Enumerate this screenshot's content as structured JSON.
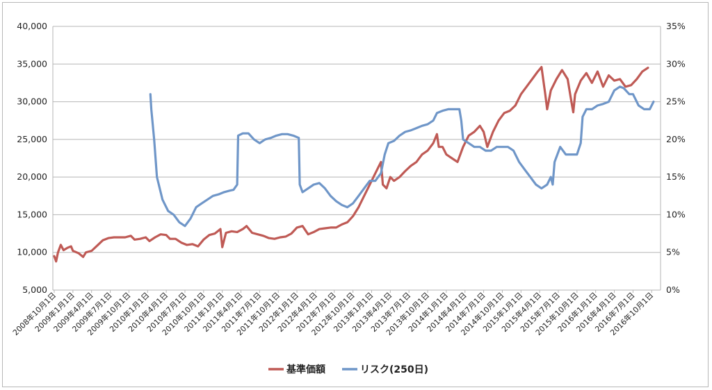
{
  "chart_data": {
    "type": "line",
    "title": "",
    "xlabel": "",
    "ylabel": "",
    "y2label": "",
    "grid": true,
    "legend_position": "bottom",
    "x_categories": [
      "2008年10月1日",
      "2009年1月1日",
      "2009年4月1日",
      "2009年7月1日",
      "2009年10月1日",
      "2010年1月1日",
      "2010年4月1日",
      "2010年7月1日",
      "2010年10月1日",
      "2011年1月1日",
      "2011年4月1日",
      "2011年7月1日",
      "2011年10月1日",
      "2012年1月1日",
      "2012年4月1日",
      "2012年7月1日",
      "2012年10月1日",
      "2013年1月1日",
      "2013年4月1日",
      "2013年7月1日",
      "2013年10月1日",
      "2014年1月1日",
      "2014年4月1日",
      "2014年7月1日",
      "2014年10月1日",
      "2015年1月1日",
      "2015年4月1日",
      "2015年7月1日",
      "2015年10月1日",
      "2016年1月1日",
      "2016年4月1日",
      "2016年7月1日",
      "2016年10月1日"
    ],
    "y_left": {
      "min": 5000,
      "max": 40000,
      "ticks": [
        "5,000",
        "10,000",
        "15,000",
        "20,000",
        "25,000",
        "30,000",
        "35,000",
        "40,000"
      ]
    },
    "y_right": {
      "min": 0,
      "max": 35,
      "ticks": [
        "0%",
        "5%",
        "10%",
        "15%",
        "20%",
        "25%",
        "30%",
        "35%"
      ]
    },
    "series": [
      {
        "name": "基準価額",
        "axis": "left",
        "color": "#bf5a55",
        "points": [
          [
            0,
            9500
          ],
          [
            0.1,
            8800
          ],
          [
            0.2,
            10000
          ],
          [
            0.35,
            11000
          ],
          [
            0.5,
            10300
          ],
          [
            0.7,
            10600
          ],
          [
            0.9,
            10800
          ],
          [
            1.0,
            10200
          ],
          [
            1.3,
            9900
          ],
          [
            1.55,
            9400
          ],
          [
            1.7,
            10000
          ],
          [
            2.0,
            10200
          ],
          [
            2.3,
            10900
          ],
          [
            2.6,
            11600
          ],
          [
            2.9,
            11900
          ],
          [
            3.2,
            12000
          ],
          [
            3.5,
            12000
          ],
          [
            3.8,
            12000
          ],
          [
            4.1,
            12200
          ],
          [
            4.3,
            11700
          ],
          [
            4.6,
            11800
          ],
          [
            4.9,
            12000
          ],
          [
            5.1,
            11500
          ],
          [
            5.4,
            12000
          ],
          [
            5.7,
            12400
          ],
          [
            6.0,
            12300
          ],
          [
            6.2,
            11800
          ],
          [
            6.5,
            11800
          ],
          [
            6.8,
            11300
          ],
          [
            7.1,
            11000
          ],
          [
            7.4,
            11100
          ],
          [
            7.7,
            10800
          ],
          [
            8.0,
            11700
          ],
          [
            8.3,
            12300
          ],
          [
            8.6,
            12500
          ],
          [
            8.9,
            13100
          ],
          [
            9.0,
            10700
          ],
          [
            9.2,
            12600
          ],
          [
            9.5,
            12800
          ],
          [
            9.8,
            12700
          ],
          [
            10.1,
            13100
          ],
          [
            10.3,
            13500
          ],
          [
            10.6,
            12600
          ],
          [
            10.9,
            12400
          ],
          [
            11.2,
            12200
          ],
          [
            11.5,
            11900
          ],
          [
            11.8,
            11800
          ],
          [
            12.1,
            12000
          ],
          [
            12.4,
            12100
          ],
          [
            12.7,
            12500
          ],
          [
            13.0,
            13300
          ],
          [
            13.3,
            13500
          ],
          [
            13.6,
            12400
          ],
          [
            13.9,
            12700
          ],
          [
            14.2,
            13100
          ],
          [
            14.5,
            13200
          ],
          [
            14.8,
            13300
          ],
          [
            15.1,
            13300
          ],
          [
            15.4,
            13700
          ],
          [
            15.7,
            14000
          ],
          [
            16.0,
            14800
          ],
          [
            16.3,
            16000
          ],
          [
            16.6,
            17500
          ],
          [
            16.9,
            19000
          ],
          [
            17.2,
            20500
          ],
          [
            17.5,
            22000
          ],
          [
            17.6,
            19000
          ],
          [
            17.8,
            18500
          ],
          [
            18.0,
            20000
          ],
          [
            18.2,
            19500
          ],
          [
            18.5,
            20000
          ],
          [
            18.8,
            20800
          ],
          [
            19.1,
            21500
          ],
          [
            19.4,
            22000
          ],
          [
            19.7,
            23000
          ],
          [
            20.0,
            23500
          ],
          [
            20.3,
            24500
          ],
          [
            20.5,
            25700
          ],
          [
            20.6,
            24000
          ],
          [
            20.8,
            24000
          ],
          [
            21.0,
            23000
          ],
          [
            21.3,
            22500
          ],
          [
            21.6,
            22000
          ],
          [
            21.9,
            24000
          ],
          [
            22.2,
            25500
          ],
          [
            22.5,
            26000
          ],
          [
            22.8,
            26800
          ],
          [
            23.0,
            26000
          ],
          [
            23.2,
            24000
          ],
          [
            23.5,
            26000
          ],
          [
            23.8,
            27500
          ],
          [
            24.1,
            28500
          ],
          [
            24.4,
            28800
          ],
          [
            24.7,
            29500
          ],
          [
            25.0,
            31000
          ],
          [
            25.3,
            32000
          ],
          [
            25.6,
            33000
          ],
          [
            25.9,
            34000
          ],
          [
            26.1,
            34600
          ],
          [
            26.3,
            31000
          ],
          [
            26.4,
            29000
          ],
          [
            26.6,
            31500
          ],
          [
            26.9,
            33000
          ],
          [
            27.2,
            34200
          ],
          [
            27.5,
            33000
          ],
          [
            27.7,
            30000
          ],
          [
            27.8,
            28600
          ],
          [
            27.9,
            31000
          ],
          [
            28.2,
            32800
          ],
          [
            28.5,
            33800
          ],
          [
            28.8,
            32500
          ],
          [
            29.1,
            34000
          ],
          [
            29.4,
            32000
          ],
          [
            29.7,
            33500
          ],
          [
            30.0,
            32800
          ],
          [
            30.3,
            33000
          ],
          [
            30.6,
            32000
          ],
          [
            30.9,
            32200
          ],
          [
            31.2,
            33000
          ],
          [
            31.5,
            34000
          ],
          [
            31.8,
            34500
          ]
        ]
      },
      {
        "name": "リスク(250日)",
        "axis": "right",
        "color": "#6f96c8",
        "points": [
          [
            5.15,
            26.0
          ],
          [
            5.2,
            24.0
          ],
          [
            5.35,
            20.0
          ],
          [
            5.5,
            15.0
          ],
          [
            5.8,
            12.0
          ],
          [
            6.1,
            10.5
          ],
          [
            6.4,
            10.0
          ],
          [
            6.7,
            9.0
          ],
          [
            7.0,
            8.5
          ],
          [
            7.3,
            9.5
          ],
          [
            7.6,
            11.0
          ],
          [
            7.9,
            11.5
          ],
          [
            8.2,
            12.0
          ],
          [
            8.5,
            12.5
          ],
          [
            8.8,
            12.7
          ],
          [
            9.1,
            13.0
          ],
          [
            9.4,
            13.2
          ],
          [
            9.6,
            13.3
          ],
          [
            9.8,
            14.0
          ],
          [
            9.85,
            20.5
          ],
          [
            10.1,
            20.8
          ],
          [
            10.4,
            20.8
          ],
          [
            10.7,
            20.0
          ],
          [
            11.0,
            19.5
          ],
          [
            11.3,
            20.0
          ],
          [
            11.6,
            20.2
          ],
          [
            11.9,
            20.5
          ],
          [
            12.2,
            20.7
          ],
          [
            12.5,
            20.7
          ],
          [
            12.8,
            20.5
          ],
          [
            13.1,
            20.2
          ],
          [
            13.15,
            14.0
          ],
          [
            13.3,
            13.0
          ],
          [
            13.6,
            13.5
          ],
          [
            13.9,
            14.0
          ],
          [
            14.2,
            14.2
          ],
          [
            14.5,
            13.5
          ],
          [
            14.8,
            12.5
          ],
          [
            15.1,
            11.8
          ],
          [
            15.4,
            11.3
          ],
          [
            15.7,
            11.0
          ],
          [
            16.0,
            11.5
          ],
          [
            16.3,
            12.5
          ],
          [
            16.6,
            13.5
          ],
          [
            16.9,
            14.5
          ],
          [
            17.2,
            14.5
          ],
          [
            17.5,
            15.5
          ],
          [
            17.7,
            18.0
          ],
          [
            17.9,
            19.5
          ],
          [
            18.2,
            19.8
          ],
          [
            18.5,
            20.5
          ],
          [
            18.8,
            21.0
          ],
          [
            19.1,
            21.2
          ],
          [
            19.4,
            21.5
          ],
          [
            19.7,
            21.8
          ],
          [
            20.0,
            22.0
          ],
          [
            20.3,
            22.5
          ],
          [
            20.5,
            23.5
          ],
          [
            20.8,
            23.8
          ],
          [
            21.1,
            24.0
          ],
          [
            21.4,
            24.0
          ],
          [
            21.7,
            24.0
          ],
          [
            21.8,
            22.5
          ],
          [
            21.9,
            20.0
          ],
          [
            22.2,
            19.5
          ],
          [
            22.5,
            19.0
          ],
          [
            22.8,
            19.0
          ],
          [
            23.1,
            18.5
          ],
          [
            23.4,
            18.5
          ],
          [
            23.7,
            19.0
          ],
          [
            24.0,
            19.0
          ],
          [
            24.3,
            19.0
          ],
          [
            24.6,
            18.5
          ],
          [
            24.9,
            17.0
          ],
          [
            25.2,
            16.0
          ],
          [
            25.5,
            15.0
          ],
          [
            25.8,
            14.0
          ],
          [
            26.1,
            13.5
          ],
          [
            26.4,
            14.0
          ],
          [
            26.6,
            15.0
          ],
          [
            26.7,
            14.0
          ],
          [
            26.8,
            17.0
          ],
          [
            27.1,
            19.0
          ],
          [
            27.4,
            18.0
          ],
          [
            27.7,
            18.0
          ],
          [
            28.0,
            18.0
          ],
          [
            28.2,
            19.5
          ],
          [
            28.3,
            23.0
          ],
          [
            28.5,
            24.0
          ],
          [
            28.8,
            24.0
          ],
          [
            29.1,
            24.5
          ],
          [
            29.4,
            24.7
          ],
          [
            29.7,
            25.0
          ],
          [
            30.0,
            26.5
          ],
          [
            30.3,
            27.0
          ],
          [
            30.5,
            26.8
          ],
          [
            30.8,
            26.0
          ],
          [
            31.0,
            26.0
          ],
          [
            31.3,
            24.5
          ],
          [
            31.6,
            24.0
          ],
          [
            31.9,
            24.0
          ],
          [
            32.1,
            25.0
          ]
        ]
      }
    ]
  }
}
